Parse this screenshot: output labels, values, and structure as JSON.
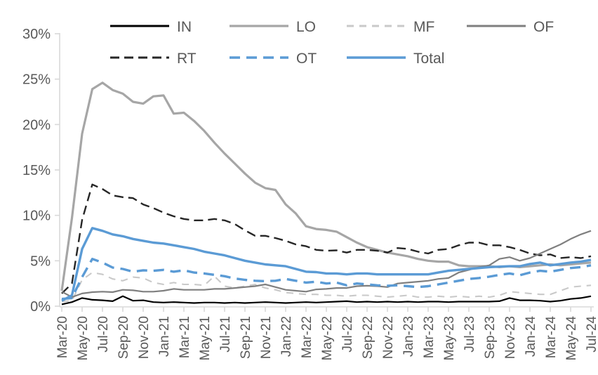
{
  "chart_data": {
    "type": "line",
    "title": "",
    "xlabel": "",
    "ylabel": "",
    "grid": "off",
    "axis_color": "#d9d9d9",
    "label_color": "#595959",
    "y_axis": {
      "min": 0,
      "max": 30,
      "step": 5,
      "tick_labels": [
        "0%",
        "5%",
        "10%",
        "15%",
        "20%",
        "25%",
        "30%"
      ]
    },
    "categories": [
      "Mar-20",
      "Apr-20",
      "May-20",
      "Jun-20",
      "Jul-20",
      "Aug-20",
      "Sep-20",
      "Oct-20",
      "Nov-20",
      "Dec-20",
      "Jan-21",
      "Feb-21",
      "Mar-21",
      "Apr-21",
      "May-21",
      "Jun-21",
      "Jul-21",
      "Aug-21",
      "Sep-21",
      "Oct-21",
      "Nov-21",
      "Dec-21",
      "Jan-22",
      "Feb-22",
      "Mar-22",
      "Apr-22",
      "May-22",
      "Jun-22",
      "Jul-22",
      "Aug-22",
      "Sep-22",
      "Oct-22",
      "Nov-22",
      "Dec-22",
      "Jan-23",
      "Feb-23",
      "Mar-23",
      "Apr-23",
      "May-23",
      "Jun-23",
      "Jul-23",
      "Aug-23",
      "Sep-23",
      "Oct-23",
      "Nov-23",
      "Dec-23",
      "Jan-24",
      "Feb-24",
      "Mar-24",
      "Apr-24",
      "May-24",
      "Jun-24",
      "Jul-24"
    ],
    "x_tick_labels": [
      "Mar-20",
      "May-20",
      "Jul-20",
      "Sep-20",
      "Nov-20",
      "Jan-21",
      "Mar-21",
      "May-21",
      "Jul-21",
      "Sep-21",
      "Nov-21",
      "Jan-22",
      "Mar-22",
      "May-22",
      "Jul-22",
      "Sep-22",
      "Nov-22",
      "Jan-23",
      "Mar-23",
      "May-23",
      "Jul-23",
      "Sep-23",
      "Nov-23",
      "Jan-24",
      "Mar-24",
      "May-24",
      "Jul-24"
    ],
    "legend": {
      "position": "top",
      "rows": [
        [
          "IN",
          "LO",
          "MF",
          "OF"
        ],
        [
          "RT",
          "OT",
          "Total"
        ]
      ]
    },
    "series": [
      {
        "name": "LO",
        "color": "#a6a6a6",
        "style": "solid",
        "width": 3.2,
        "values": [
          1.7,
          9.7,
          19.0,
          23.9,
          24.6,
          23.8,
          23.4,
          22.5,
          22.3,
          23.1,
          23.2,
          21.2,
          21.3,
          20.4,
          19.3,
          18.0,
          16.8,
          15.7,
          14.6,
          13.6,
          13.0,
          12.8,
          11.2,
          10.2,
          8.8,
          8.5,
          8.4,
          8.2,
          7.6,
          7.0,
          6.5,
          6.2,
          5.9,
          5.7,
          5.5,
          5.2,
          5.0,
          4.9,
          4.9,
          4.5,
          4.4,
          4.4,
          4.4,
          4.3,
          4.4,
          4.3,
          4.4,
          4.5,
          4.6,
          4.5,
          4.6,
          4.7,
          4.8
        ]
      },
      {
        "name": "RT",
        "color": "#262626",
        "style": "dashed",
        "width": 2.4,
        "values": [
          1.4,
          2.5,
          9.5,
          13.4,
          12.9,
          12.2,
          12.0,
          11.9,
          11.2,
          10.8,
          10.3,
          9.9,
          9.6,
          9.45,
          9.45,
          9.6,
          9.45,
          9.05,
          8.35,
          7.75,
          7.75,
          7.5,
          7.2,
          6.8,
          6.6,
          6.2,
          6.1,
          6.15,
          5.9,
          6.2,
          6.2,
          6.1,
          5.9,
          6.4,
          6.3,
          6.0,
          5.8,
          6.2,
          6.3,
          6.7,
          7.0,
          7.0,
          6.7,
          6.7,
          6.5,
          6.2,
          5.8,
          5.6,
          5.7,
          5.3,
          5.4,
          5.3,
          5.5
        ]
      },
      {
        "name": "MF",
        "color": "#c9c9c9",
        "style": "dashed",
        "width": 2.1,
        "values": [
          0.5,
          0.6,
          2.9,
          3.7,
          3.5,
          3.0,
          2.8,
          3.2,
          3.1,
          2.6,
          2.4,
          2.6,
          2.4,
          2.4,
          2.3,
          3.3,
          2.2,
          2.0,
          2.2,
          2.4,
          2.0,
          1.8,
          1.5,
          1.4,
          1.3,
          1.3,
          1.2,
          1.2,
          1.1,
          1.2,
          1.2,
          1.1,
          1.0,
          1.1,
          1.2,
          1.0,
          1.0,
          1.1,
          1.0,
          1.1,
          1.0,
          1.1,
          1.0,
          1.2,
          1.6,
          1.5,
          1.4,
          1.3,
          1.3,
          1.7,
          2.1,
          2.2,
          2.3
        ]
      },
      {
        "name": "OF",
        "color": "#7f7f7f",
        "style": "solid",
        "width": 2.2,
        "values": [
          1.6,
          1.0,
          1.4,
          1.55,
          1.6,
          1.55,
          1.8,
          1.75,
          1.6,
          1.6,
          1.7,
          1.9,
          1.8,
          1.8,
          1.8,
          1.9,
          1.9,
          2.0,
          2.1,
          2.2,
          2.4,
          2.1,
          1.8,
          1.7,
          1.6,
          1.85,
          1.9,
          2.0,
          2.0,
          2.2,
          2.25,
          2.2,
          2.1,
          2.5,
          2.6,
          2.7,
          2.8,
          3.0,
          3.1,
          3.7,
          4.0,
          4.3,
          4.5,
          5.2,
          5.4,
          5.0,
          5.3,
          5.8,
          6.3,
          6.8,
          7.4,
          7.9,
          8.3
        ]
      },
      {
        "name": "IN",
        "color": "#000000",
        "style": "solid",
        "width": 2.2,
        "values": [
          0.2,
          0.45,
          0.9,
          0.7,
          0.65,
          0.55,
          1.1,
          0.6,
          0.65,
          0.45,
          0.4,
          0.45,
          0.4,
          0.35,
          0.4,
          0.4,
          0.35,
          0.4,
          0.35,
          0.4,
          0.45,
          0.4,
          0.35,
          0.4,
          0.45,
          0.4,
          0.45,
          0.5,
          0.55,
          0.45,
          0.5,
          0.45,
          0.5,
          0.45,
          0.5,
          0.45,
          0.5,
          0.5,
          0.45,
          0.5,
          0.5,
          0.5,
          0.5,
          0.55,
          0.9,
          0.65,
          0.65,
          0.6,
          0.5,
          0.6,
          0.8,
          0.9,
          1.1
        ]
      },
      {
        "name": "OT",
        "color": "#5b9bd5",
        "style": "dashed",
        "width": 3.4,
        "values": [
          0.8,
          0.9,
          3.2,
          5.2,
          4.8,
          4.25,
          4.1,
          3.8,
          3.95,
          3.9,
          4.0,
          3.8,
          3.95,
          3.7,
          3.6,
          3.45,
          3.3,
          3.05,
          2.9,
          2.8,
          2.75,
          2.8,
          3.0,
          2.8,
          2.6,
          2.7,
          2.5,
          2.6,
          2.3,
          2.5,
          2.4,
          2.3,
          2.25,
          2.3,
          2.2,
          2.1,
          2.2,
          2.4,
          2.6,
          2.8,
          3.0,
          3.1,
          3.25,
          3.45,
          3.6,
          3.4,
          3.7,
          3.9,
          3.8,
          4.0,
          4.2,
          4.3,
          4.5
        ]
      },
      {
        "name": "Total",
        "color": "#5b9bd5",
        "style": "solid",
        "width": 3.4,
        "values": [
          0.6,
          1.2,
          6.3,
          8.6,
          8.3,
          7.9,
          7.7,
          7.4,
          7.2,
          7.0,
          6.9,
          6.7,
          6.5,
          6.3,
          6.0,
          5.8,
          5.6,
          5.3,
          5.0,
          4.8,
          4.6,
          4.5,
          4.4,
          4.1,
          3.8,
          3.75,
          3.6,
          3.6,
          3.5,
          3.6,
          3.6,
          3.5,
          3.5,
          3.5,
          3.5,
          3.5,
          3.5,
          3.7,
          3.9,
          4.0,
          4.1,
          4.2,
          4.3,
          4.35,
          4.4,
          4.4,
          4.65,
          4.8,
          4.5,
          4.65,
          4.8,
          4.9,
          5.1
        ]
      }
    ]
  }
}
